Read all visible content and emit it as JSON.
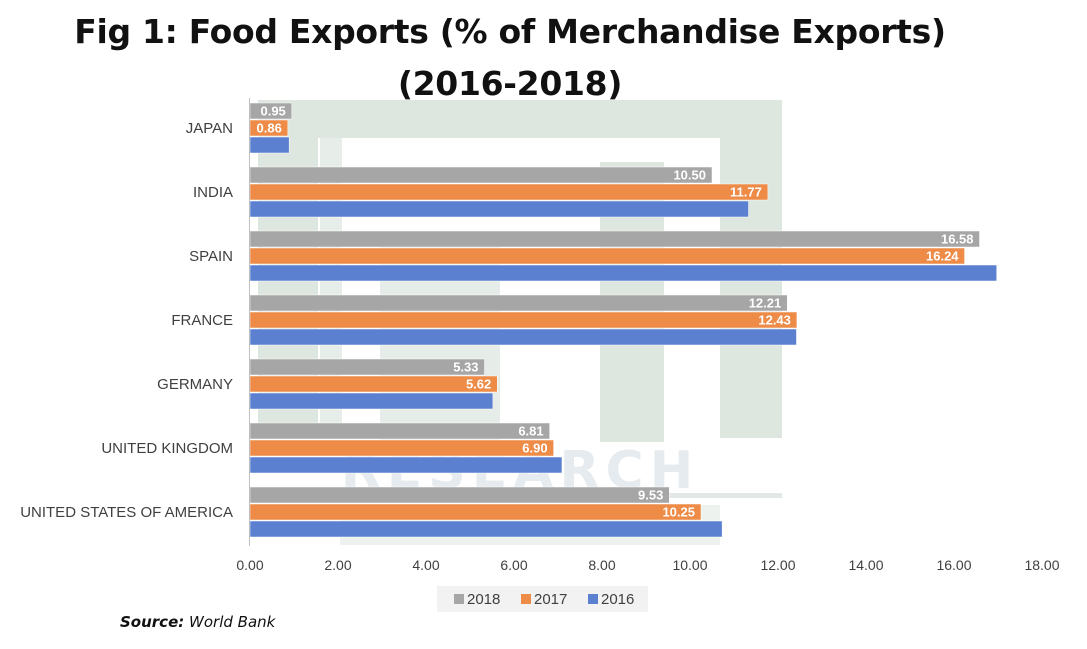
{
  "chart_data": {
    "type": "bar",
    "orientation": "horizontal",
    "title_line1": "Fig 1: Food Exports (% of Merchandise Exports)",
    "title_line2": "(2016-2018)",
    "categories": [
      "JAPAN",
      "INDIA",
      "SPAIN",
      "FRANCE",
      "GERMANY",
      "UNITED KINGDOM",
      "UNITED STATES OF AMERICA"
    ],
    "series": [
      {
        "name": "2018",
        "color": "#a6a6a6",
        "values": [
          0.95,
          10.5,
          16.58,
          12.21,
          5.33,
          6.81,
          9.53
        ],
        "labels": [
          "0.95",
          "10.50",
          "16.58",
          "12.21",
          "5.33",
          "6.81",
          "9.53"
        ]
      },
      {
        "name": "2017",
        "color": "#ed8b47",
        "values": [
          0.86,
          11.77,
          16.24,
          12.43,
          5.62,
          6.9,
          10.25
        ],
        "labels": [
          "0.86",
          "11.77",
          "16.24",
          "12.43",
          "5.62",
          "6.90",
          "10.25"
        ]
      },
      {
        "name": "2016",
        "color": "#5b80cf",
        "values": [
          0.89,
          11.33,
          16.97,
          12.42,
          5.52,
          7.09,
          10.73
        ],
        "labels": null
      }
    ],
    "xlim": [
      0,
      18
    ],
    "xticks": [
      "0.00",
      "2.00",
      "4.00",
      "6.00",
      "8.00",
      "10.00",
      "12.00",
      "14.00",
      "16.00",
      "18.00"
    ],
    "grid": false,
    "legend_position": "bottom",
    "watermark": "RESEARCH"
  },
  "source": {
    "label": "Source:",
    "text": "World Bank"
  }
}
